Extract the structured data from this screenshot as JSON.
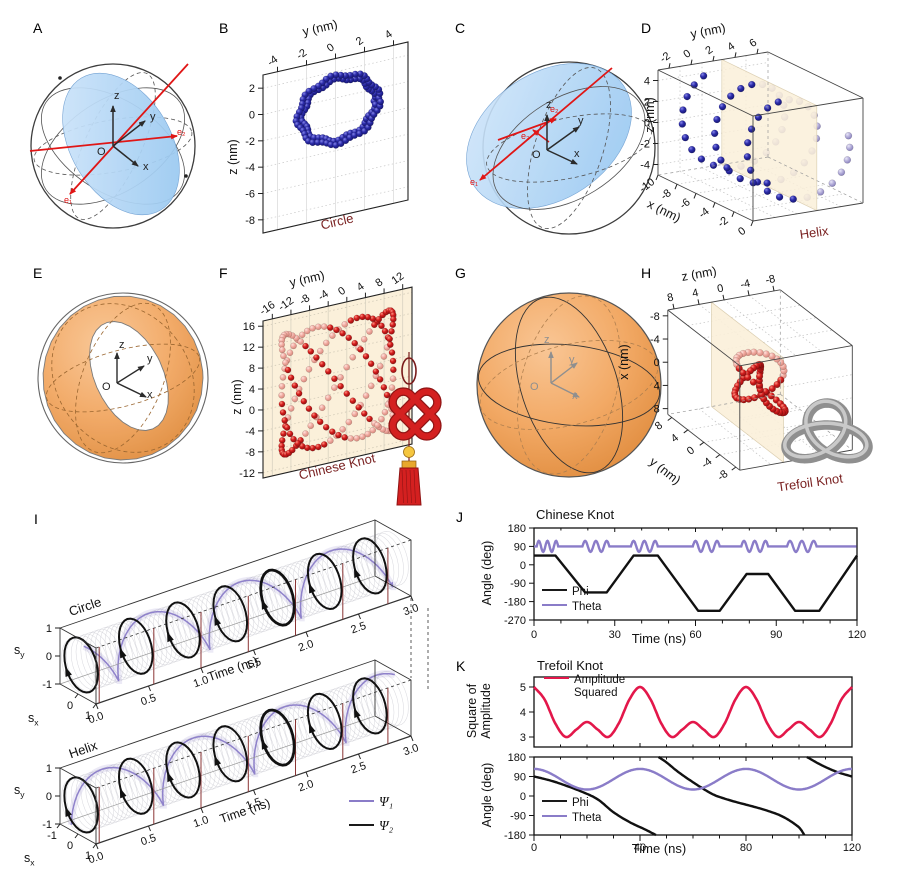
{
  "colors": {
    "purple": "#8a7cc8",
    "black": "#1a1a1a",
    "red": "#e3174a",
    "maroon": "#7b2323",
    "navy": "#26269c",
    "crimson": "#cf1d1d",
    "pink": "#f0a89e",
    "lavender": "#b6b0da",
    "beige": "#fbf0da",
    "orange": "#f2a965",
    "blue_disk": "#aed4f5"
  },
  "panels": {
    "A": {
      "letter": "A",
      "x": "x",
      "y": "y",
      "z": "z",
      "o": "O",
      "e1": "e₁",
      "e2": "e₂"
    },
    "B": {
      "letter": "B",
      "caption": "Circle",
      "xlabel": "y (nm)",
      "ylabel": "z (nm)",
      "xticks": [
        "-4",
        "-2",
        "0",
        "2",
        "4"
      ],
      "yticks": [
        "2",
        "0",
        "-2",
        "-4",
        "-6",
        "-8"
      ],
      "chart_data": {
        "type": "scatter",
        "description": "closed ring of dark-blue sphere markers in the y-z plane",
        "center_y_nm": 0.2,
        "center_z_nm": -0.9,
        "ring_radii_nm": [
          2.45,
          2.8
        ],
        "n_points": 104
      }
    },
    "C": {
      "letter": "C",
      "x": "x",
      "y": "y",
      "z": "z",
      "o": "O",
      "e1": "e₁",
      "e2": "e₂",
      "e3": "e₃"
    },
    "D": {
      "letter": "D",
      "caption": "Helix",
      "top_label": "y (nm)",
      "left_label": "z (nm)",
      "bottom_label": "x (nm)",
      "top_ticks": [
        "-2",
        "0",
        "2",
        "4",
        "6"
      ],
      "left_ticks": [
        "4",
        "2",
        "0",
        "-2",
        "-4"
      ],
      "bottom_ticks": [
        "-10",
        "-8",
        "-6",
        "-4",
        "-2",
        "0"
      ],
      "chart_data": {
        "type": "scatter3d",
        "description": "helix of sphere markers along x axis crossing a translucent plane",
        "x_range_nm": [
          -9.7,
          -0.3
        ],
        "turns": 2.75,
        "radius_y_nm": 3.9,
        "radius_z_nm": 4.3,
        "center_y_nm": 2.3,
        "center_z_nm": -0.1,
        "n_points": 60
      }
    },
    "E": {
      "letter": "E",
      "x": "x",
      "y": "y",
      "z": "z",
      "o": "O"
    },
    "F": {
      "letter": "F",
      "caption": "Chinese Knot",
      "xlabel": "y (nm)",
      "ylabel": "z (nm)",
      "xticks": [
        "-16",
        "-12",
        "-8",
        "-4",
        "0",
        "4",
        "8",
        "12"
      ],
      "yticks": [
        "16",
        "12",
        "8",
        "4",
        "0",
        "-4",
        "-8",
        "-12"
      ],
      "chart_data": {
        "type": "scatter",
        "description": "Chinese-knot shaped woven loop of red sphere markers (3:4 Lissajous-like weave)",
        "y_amplitude_nm": 12,
        "z_amplitude_nm": 11.5,
        "center_y_nm": -2,
        "center_z_nm": 2,
        "n_points": 170
      }
    },
    "G": {
      "letter": "G",
      "x": "x",
      "y": "y",
      "z": "z",
      "o": "O"
    },
    "H": {
      "letter": "H",
      "caption": "Trefoil Knot",
      "top_label": "z (nm)",
      "left_label": "x (nm)",
      "bottom_label": "y (nm)",
      "top_ticks": [
        "8",
        "4",
        "0",
        "-4",
        "-8"
      ],
      "left_ticks": [
        "-8",
        "-4",
        "0",
        "4",
        "8"
      ],
      "bottom_ticks": [
        "8",
        "4",
        "0",
        "-4",
        "-8"
      ],
      "chart_data": {
        "type": "scatter3d",
        "description": "trefoil knot of red sphere markers crossing a translucent plane",
        "scale_nm": 1.9,
        "n_points": 66
      }
    },
    "I": {
      "letter": "I",
      "row_titles": [
        "Circle",
        "Helix"
      ],
      "time_label": "Time (ns)",
      "time_ticks": [
        "0.0",
        "0.5",
        "1.0",
        "1.5",
        "2.0",
        "2.5",
        "3.0"
      ],
      "s_label": "s",
      "sy_sub": "y",
      "sx_sub": "x",
      "sy_ticks": [
        "1",
        "0",
        "-1"
      ],
      "sx_ticks_top": [
        "0",
        "1"
      ],
      "sx_ticks_bottom": [
        "-1",
        "0",
        "1"
      ],
      "legend": [
        {
          "label": "Ψ₁",
          "color_key": "purple"
        },
        {
          "label": "Ψ₂",
          "color_key": "black"
        }
      ],
      "chart_data": {
        "type": "3d-tube",
        "rows": [
          "Circle",
          "Helix"
        ],
        "time_range_ns": [
          0,
          3
        ],
        "sx_range": [
          -1,
          1
        ],
        "sy_range": [
          -1,
          1
        ],
        "series": [
          "Psi1 purple polarization spiral",
          "Psi2 black sampled ellipses with arrows"
        ]
      }
    },
    "J": {
      "letter": "J",
      "title": "Chinese Knot",
      "ylabel": "Angle (deg)",
      "xlabel": "Time (ns)",
      "yticks": [
        "180",
        "90",
        "0",
        "-90",
        "-180",
        "-270"
      ],
      "xticks": [
        "0",
        "30",
        "60",
        "90",
        "120"
      ],
      "legend": [
        {
          "label": "Phi",
          "color_key": "black"
        },
        {
          "label": "Theta",
          "color_key": "purple"
        }
      ],
      "chart_data": {
        "type": "line",
        "xlabel": "Time (ns)",
        "ylabel": "Angle (deg)",
        "xlim": [
          0,
          120
        ],
        "ylim": [
          -270,
          180
        ],
        "series": [
          {
            "name": "Phi",
            "points": [
              [
                0,
                45
              ],
              [
                8,
                45
              ],
              [
                19,
                -135
              ],
              [
                27,
                -135
              ],
              [
                37,
                45
              ],
              [
                46,
                45
              ],
              [
                61,
                -225
              ],
              [
                69,
                -225
              ],
              [
                79,
                -45
              ],
              [
                87,
                -45
              ],
              [
                97,
                -225
              ],
              [
                106,
                -225
              ],
              [
                120,
                45
              ]
            ]
          },
          {
            "name": "Theta",
            "baseline": 90,
            "amplitude": 27,
            "cycles_per_burst": 2.5,
            "bursts": [
              [
                1,
                9
              ],
              [
                18,
                28
              ],
              [
                36,
                46
              ],
              [
                59,
                69
              ],
              [
                77,
                87
              ],
              [
                94,
                105
              ]
            ]
          }
        ]
      }
    },
    "K": {
      "letter": "K",
      "title": "Trefoil Knot",
      "xlabel": "Time (ns)",
      "top": {
        "ylabel_line1": "Square of",
        "ylabel_line2": "Amplitude",
        "yticks": [
          "3",
          "4",
          "5"
        ],
        "legend_line1": "Amplitude",
        "legend_line2": "Squared",
        "chart_data": {
          "type": "line",
          "ylim": [
            2.6,
            5.4
          ],
          "xlim": [
            0,
            120
          ],
          "period_ns": 40,
          "points_one_period": [
            [
              0,
              5.0
            ],
            [
              4,
              4.5
            ],
            [
              8,
              3.55
            ],
            [
              12,
              3.0
            ],
            [
              16,
              3.3
            ],
            [
              20,
              3.6
            ],
            [
              24,
              3.3
            ],
            [
              28,
              3.0
            ],
            [
              32,
              3.55
            ],
            [
              36,
              4.5
            ],
            [
              40,
              5.0
            ]
          ]
        }
      },
      "bottom": {
        "ylabel": "Angle (deg)",
        "yticks": [
          "180",
          "90",
          "0",
          "-90",
          "-180"
        ],
        "xticks": [
          "0",
          "40",
          "80",
          "120"
        ],
        "legend": [
          {
            "label": "Phi",
            "color_key": "black"
          },
          {
            "label": "Theta",
            "color_key": "purple"
          }
        ],
        "chart_data": {
          "type": "line",
          "xlim": [
            0,
            120
          ],
          "ylim": [
            -180,
            180
          ],
          "series": [
            {
              "name": "Phi",
              "branches": [
                [
                  [
                    0,
                    90
                  ],
                  [
                    6,
                    72
                  ],
                  [
                    12,
                    48
                  ],
                  [
                    18,
                    20
                  ],
                  [
                    24,
                    -15
                  ],
                  [
                    30,
                    -75
                  ],
                  [
                    36,
                    -120
                  ],
                  [
                    42,
                    -155
                  ],
                  [
                    46,
                    -180
                  ]
                ],
                [
                  [
                    47,
                    180
                  ],
                  [
                    50,
                    155
                  ],
                  [
                    54,
                    115
                  ],
                  [
                    58,
                    80
                  ],
                  [
                    63,
                    40
                  ],
                  [
                    68,
                    5
                  ],
                  [
                    74,
                    -20
                  ],
                  [
                    80,
                    -40
                  ],
                  [
                    86,
                    -60
                  ],
                  [
                    92,
                    -85
                  ],
                  [
                    96,
                    -110
                  ],
                  [
                    100,
                    -145
                  ],
                  [
                    102,
                    -180
                  ]
                ],
                [
                  [
                    103,
                    180
                  ],
                  [
                    107,
                    152
                  ],
                  [
                    111,
                    128
                  ],
                  [
                    115,
                    108
                  ],
                  [
                    120,
                    90
                  ]
                ]
              ]
            },
            {
              "name": "Theta",
              "baseline": 77.5,
              "amplitude": 47.5,
              "period_ns": 40
            }
          ]
        }
      }
    }
  }
}
